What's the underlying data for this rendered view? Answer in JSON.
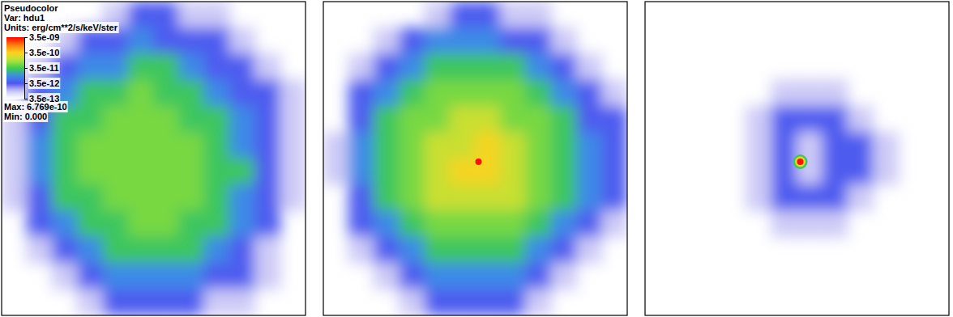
{
  "chart_data": {
    "type": "heatmap",
    "log": true,
    "colorbar": {
      "title": "Pseudocolor",
      "variable": "Var: hdu1",
      "units": "Units: erg/cm**2/s/keV/ster",
      "range": [
        3.5e-13,
        3.5e-09
      ],
      "ticks": [
        {
          "value": 3.5e-09,
          "label": "3.5e-09"
        },
        {
          "value": 3.5e-10,
          "label": "3.5e-10"
        },
        {
          "value": 3.5e-11,
          "label": "3.5e-11"
        },
        {
          "value": 3.5e-12,
          "label": "3.5e-12"
        },
        {
          "value": 3.5e-13,
          "label": "3.5e-13"
        }
      ],
      "max_label": "Max: 6.769e-10",
      "min_label": "Min: 0.000"
    },
    "panels": [
      {
        "cells": [
          [
            0,
            0,
            0,
            0,
            1e-12,
            4e-12,
            4e-12,
            1e-12,
            1e-12,
            0,
            0,
            0
          ],
          [
            0,
            0,
            1e-12,
            4e-12,
            4e-12,
            1e-11,
            4e-12,
            4e-12,
            4e-12,
            1e-12,
            0,
            0
          ],
          [
            0,
            1e-12,
            4e-12,
            1e-11,
            1e-11,
            3e-11,
            3e-11,
            1e-11,
            4e-12,
            4e-12,
            1e-12,
            0
          ],
          [
            0,
            4e-12,
            1e-11,
            3e-11,
            3e-11,
            6e-11,
            3e-11,
            3e-11,
            1e-11,
            4e-12,
            4e-12,
            1e-12
          ],
          [
            1e-12,
            4e-12,
            3e-11,
            3e-11,
            6e-11,
            6e-11,
            6e-11,
            3e-11,
            3e-11,
            1e-11,
            4e-12,
            1e-12
          ],
          [
            1e-12,
            1e-11,
            3e-11,
            6e-11,
            6e-11,
            6e-11,
            6e-11,
            6e-11,
            3e-11,
            1e-11,
            4e-12,
            1e-12
          ],
          [
            1e-12,
            1e-11,
            3e-11,
            6e-11,
            6e-11,
            6e-11,
            6e-11,
            6e-11,
            3e-11,
            3e-11,
            4e-12,
            1e-12
          ],
          [
            1e-12,
            4e-12,
            3e-11,
            3e-11,
            6e-11,
            6e-11,
            6e-11,
            6e-11,
            3e-11,
            1e-11,
            4e-12,
            1e-12
          ],
          [
            0,
            4e-12,
            1e-11,
            3e-11,
            3e-11,
            6e-11,
            6e-11,
            3e-11,
            3e-11,
            1e-11,
            4e-12,
            0
          ],
          [
            0,
            1e-12,
            4e-12,
            1e-11,
            3e-11,
            3e-11,
            3e-11,
            3e-11,
            1e-11,
            4e-12,
            1e-12,
            0
          ],
          [
            0,
            0,
            1e-12,
            4e-12,
            1e-11,
            1e-11,
            1e-11,
            1e-11,
            4e-12,
            4e-12,
            1e-12,
            0
          ],
          [
            0,
            0,
            0,
            1e-12,
            4e-12,
            4e-12,
            4e-12,
            4e-12,
            1e-12,
            1e-12,
            0,
            0
          ]
        ]
      },
      {
        "cells": [
          [
            0,
            0,
            0,
            0,
            1e-12,
            4e-12,
            4e-12,
            1e-12,
            1e-12,
            0,
            0,
            0
          ],
          [
            0,
            0,
            1e-12,
            4e-12,
            1e-11,
            1e-11,
            1e-11,
            4e-12,
            4e-12,
            1e-12,
            0,
            0
          ],
          [
            0,
            1e-12,
            4e-12,
            1e-11,
            3e-11,
            3e-11,
            3e-11,
            3e-11,
            1e-11,
            4e-12,
            1e-12,
            0
          ],
          [
            0,
            4e-12,
            1e-11,
            3e-11,
            6e-11,
            6e-11,
            6e-11,
            6e-11,
            3e-11,
            1e-11,
            4e-12,
            1e-12
          ],
          [
            0,
            4e-12,
            3e-11,
            6e-11,
            6e-11,
            1.5e-10,
            1.5e-10,
            6e-11,
            6e-11,
            3e-11,
            4e-12,
            4e-12
          ],
          [
            1e-12,
            1e-11,
            3e-11,
            6e-11,
            1.5e-10,
            1.5e-10,
            3e-10,
            1.5e-10,
            6e-11,
            3e-11,
            1e-11,
            4e-12
          ],
          [
            1e-12,
            1e-11,
            3e-11,
            6e-11,
            1.5e-10,
            3e-10,
            3e-10,
            1.5e-10,
            6e-11,
            3e-11,
            1e-11,
            4e-12
          ],
          [
            0,
            4e-12,
            3e-11,
            6e-11,
            1.5e-10,
            1.5e-10,
            1.5e-10,
            1.5e-10,
            6e-11,
            3e-11,
            1e-11,
            4e-12
          ],
          [
            0,
            4e-12,
            1e-11,
            3e-11,
            6e-11,
            6e-11,
            6e-11,
            6e-11,
            3e-11,
            1e-11,
            4e-12,
            1e-12
          ],
          [
            0,
            1e-12,
            4e-12,
            1e-11,
            3e-11,
            3e-11,
            3e-11,
            3e-11,
            1e-11,
            4e-12,
            1e-12,
            0
          ],
          [
            0,
            0,
            1e-12,
            4e-12,
            1e-11,
            1e-11,
            1e-11,
            1e-11,
            4e-12,
            1e-12,
            0,
            0
          ],
          [
            0,
            0,
            0,
            1e-12,
            4e-12,
            4e-12,
            4e-12,
            4e-12,
            1e-12,
            0,
            0,
            0
          ]
        ],
        "peak": [
          3e-09
        ]
      },
      {
        "cells": [
          [
            0,
            0,
            0,
            0,
            0,
            0,
            0,
            0,
            0,
            0,
            0,
            0
          ],
          [
            0,
            0,
            0,
            0,
            0,
            0,
            0,
            0,
            0,
            0,
            0,
            0
          ],
          [
            0,
            0,
            0,
            0,
            0,
            0,
            0,
            0,
            0,
            0,
            0,
            0
          ],
          [
            0,
            0,
            0,
            0,
            0,
            1e-12,
            1e-12,
            1e-12,
            0,
            0,
            0,
            0
          ],
          [
            0,
            0,
            0,
            0,
            1e-12,
            4e-12,
            4e-12,
            4e-12,
            1e-12,
            0,
            0,
            0
          ],
          [
            0,
            0,
            0,
            0,
            1e-12,
            4e-12,
            1e-12,
            4e-12,
            4e-12,
            1e-12,
            0,
            0
          ],
          [
            0,
            0,
            0,
            0,
            1e-12,
            4e-12,
            1e-12,
            4e-12,
            4e-12,
            1e-12,
            0,
            0
          ],
          [
            0,
            0,
            0,
            0,
            1e-12,
            4e-12,
            4e-12,
            4e-12,
            1e-12,
            0,
            0,
            0
          ],
          [
            0,
            0,
            0,
            0,
            0,
            1e-12,
            1e-12,
            1e-12,
            0,
            0,
            0,
            0
          ],
          [
            0,
            0,
            0,
            0,
            0,
            0,
            0,
            0,
            0,
            0,
            0,
            0
          ],
          [
            0,
            0,
            0,
            0,
            0,
            0,
            0,
            0,
            0,
            0,
            0,
            0
          ],
          [
            0,
            0,
            0,
            0,
            0,
            0,
            0,
            0,
            0,
            0,
            0,
            0
          ]
        ],
        "peak": [
          3e-11,
          2e-10,
          3e-09
        ]
      }
    ]
  }
}
